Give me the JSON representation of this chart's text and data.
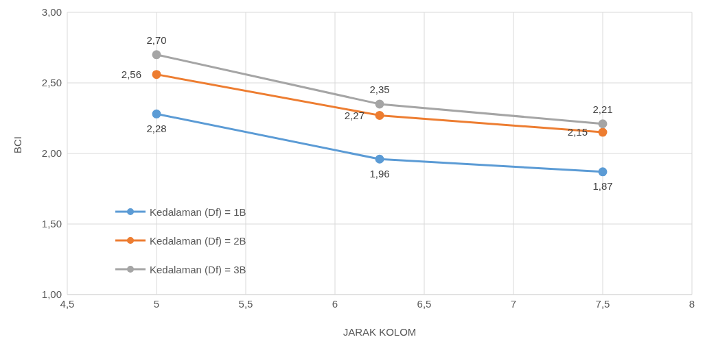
{
  "chart_data": {
    "type": "line",
    "xlabel": "JARAK KOLOM",
    "ylabel": "BCI",
    "x": [
      5,
      6.25,
      7.5
    ],
    "series": [
      {
        "name": "Kedalaman (Df) = 1B",
        "color": "#5b9bd5",
        "values": [
          2.28,
          1.96,
          1.87
        ],
        "value_labels": [
          "2,28",
          "1,96",
          "1,87"
        ]
      },
      {
        "name": "Kedalaman (Df) = 2B",
        "color": "#ed7d31",
        "values": [
          2.56,
          2.27,
          2.15
        ],
        "value_labels": [
          "2,56",
          "2,27",
          "2,15"
        ]
      },
      {
        "name": "Kedalaman (Df) = 3B",
        "color": "#a5a5a5",
        "values": [
          2.7,
          2.35,
          2.21
        ],
        "value_labels": [
          "2,70",
          "2,35",
          "2,21"
        ]
      }
    ],
    "xlim": [
      4.5,
      8
    ],
    "xticks": [
      {
        "value": 4.5,
        "label": "4,5"
      },
      5,
      {
        "value": 5.5,
        "label": "5,5"
      },
      6,
      {
        "value": 6.5,
        "label": "6,5"
      },
      7,
      {
        "value": 7.5,
        "label": "7,5"
      },
      8
    ],
    "ylim": [
      1,
      3
    ],
    "yticks": [
      {
        "value": 1,
        "label": "1,00"
      },
      {
        "value": 1.5,
        "label": "1,50"
      },
      {
        "value": 2,
        "label": "2,00"
      },
      {
        "value": 2.5,
        "label": "2,50"
      },
      {
        "value": 3,
        "label": "3,00"
      }
    ],
    "grid": true,
    "legend": "left",
    "marker": "circle",
    "line_style": "solid"
  }
}
